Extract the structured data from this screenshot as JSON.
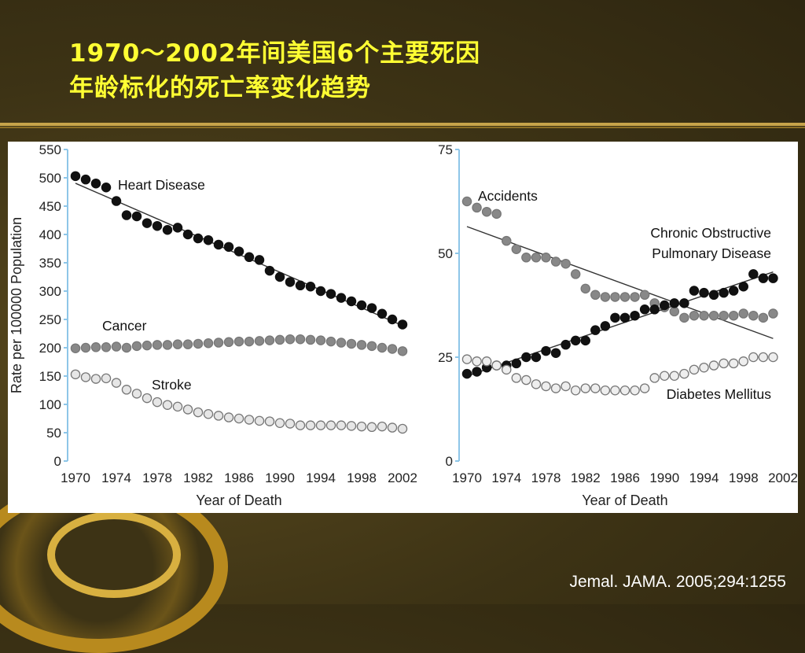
{
  "slide": {
    "title_line1": "1970～2002年间美国6个主要死因",
    "title_line2": "年龄标化的死亡率变化趋势",
    "citation": "Jemal. JAMA. 2005;294:1255"
  },
  "chart_data": [
    {
      "type": "scatter",
      "xlabel": "Year of Death",
      "ylabel": "Rate per 100000 Population",
      "xlim": [
        1970,
        2002
      ],
      "ylim": [
        0,
        550
      ],
      "x_ticks": [
        "1970",
        "1974",
        "1978",
        "1982",
        "1986",
        "1990",
        "1994",
        "1998",
        "2002"
      ],
      "y_ticks": [
        "0",
        "50",
        "100",
        "150",
        "200",
        "250",
        "300",
        "350",
        "400",
        "450",
        "500",
        "550"
      ],
      "trend_lines": true,
      "series": [
        {
          "name": "Heart Disease",
          "color": "#111111",
          "stroke": "#111111",
          "trend_line": true,
          "x": [
            1970,
            1971,
            1972,
            1973,
            1974,
            1975,
            1976,
            1977,
            1978,
            1979,
            1980,
            1981,
            1982,
            1983,
            1984,
            1985,
            1986,
            1987,
            1988,
            1989,
            1990,
            1991,
            1992,
            1993,
            1994,
            1995,
            1996,
            1997,
            1998,
            1999,
            2000,
            2001,
            2002
          ],
          "values": [
            503,
            497,
            490,
            483,
            459,
            434,
            432,
            420,
            415,
            408,
            412,
            400,
            393,
            390,
            382,
            378,
            370,
            360,
            355,
            336,
            325,
            316,
            310,
            308,
            300,
            295,
            288,
            282,
            275,
            270,
            260,
            250,
            241
          ]
        },
        {
          "name": "Cancer",
          "color": "#888888",
          "stroke": "#777777",
          "trend_line": false,
          "x": [
            1970,
            1971,
            1972,
            1973,
            1974,
            1975,
            1976,
            1977,
            1978,
            1979,
            1980,
            1981,
            1982,
            1983,
            1984,
            1985,
            1986,
            1987,
            1988,
            1989,
            1990,
            1991,
            1992,
            1993,
            1994,
            1995,
            1996,
            1997,
            1998,
            1999,
            2000,
            2001,
            2002
          ],
          "values": [
            199,
            200,
            201,
            201,
            202,
            200,
            203,
            204,
            205,
            205,
            206,
            206,
            207,
            208,
            209,
            210,
            211,
            211,
            212,
            213,
            214,
            215,
            215,
            214,
            213,
            211,
            209,
            207,
            205,
            203,
            200,
            198,
            194
          ]
        },
        {
          "name": "Stroke",
          "color": "#e6e6e6",
          "stroke": "#777777",
          "trend_line": false,
          "x": [
            1970,
            1971,
            1972,
            1973,
            1974,
            1975,
            1976,
            1977,
            1978,
            1979,
            1980,
            1981,
            1982,
            1983,
            1984,
            1985,
            1986,
            1987,
            1988,
            1989,
            1990,
            1991,
            1992,
            1993,
            1994,
            1995,
            1996,
            1997,
            1998,
            1999,
            2000,
            2001,
            2002
          ],
          "values": [
            153,
            148,
            145,
            146,
            138,
            126,
            119,
            111,
            104,
            99,
            96,
            91,
            86,
            83,
            80,
            77,
            75,
            73,
            71,
            70,
            67,
            66,
            63,
            63,
            63,
            63,
            63,
            62,
            61,
            60,
            61,
            59,
            57
          ]
        }
      ]
    },
    {
      "type": "scatter",
      "xlabel": "Year of Death",
      "ylabel": "",
      "xlim": [
        1970,
        2002
      ],
      "ylim": [
        0,
        75
      ],
      "x_ticks": [
        "1970",
        "1974",
        "1978",
        "1982",
        "1986",
        "1990",
        "1994",
        "1998",
        "2002"
      ],
      "y_ticks": [
        "0",
        "25",
        "50",
        "75"
      ],
      "trend_lines": true,
      "series": [
        {
          "name": "Accidents",
          "color": "#888888",
          "stroke": "#777777",
          "trend_line": true,
          "x": [
            1970,
            1971,
            1972,
            1973,
            1974,
            1975,
            1976,
            1977,
            1978,
            1979,
            1980,
            1981,
            1982,
            1983,
            1984,
            1985,
            1986,
            1987,
            1988,
            1989,
            1990,
            1991,
            1992,
            1993,
            1994,
            1995,
            1996,
            1997,
            1998,
            1999,
            2000,
            2001
          ],
          "values": [
            62.5,
            61,
            60,
            59.5,
            53,
            51,
            49,
            49,
            49,
            48,
            47.5,
            45,
            41.5,
            40,
            39.5,
            39.5,
            39.5,
            39.5,
            40,
            38,
            37,
            36,
            34.5,
            35,
            35,
            35,
            35,
            35,
            35.5,
            35,
            34.5,
            35.5
          ]
        },
        {
          "name": "Chronic Obstructive Pulmonary Disease",
          "color": "#111111",
          "stroke": "#111111",
          "trend_line": true,
          "x": [
            1970,
            1971,
            1972,
            1973,
            1974,
            1975,
            1976,
            1977,
            1978,
            1979,
            1980,
            1981,
            1982,
            1983,
            1984,
            1985,
            1986,
            1987,
            1988,
            1989,
            1990,
            1991,
            1992,
            1993,
            1994,
            1995,
            1996,
            1997,
            1998,
            1999,
            2000,
            2001
          ],
          "values": [
            21,
            21.5,
            22.5,
            23,
            23,
            23.5,
            25,
            25,
            26.5,
            26,
            28,
            29,
            29,
            31.5,
            32.5,
            34.5,
            34.5,
            35,
            36.5,
            36.5,
            37.5,
            38,
            38,
            41,
            40.5,
            40,
            40.5,
            41,
            42,
            45,
            44,
            44
          ]
        },
        {
          "name": "Diabetes Mellitus",
          "color": "#eeeeee",
          "stroke": "#777777",
          "trend_line": false,
          "x": [
            1970,
            1971,
            1972,
            1973,
            1974,
            1975,
            1976,
            1977,
            1978,
            1979,
            1980,
            1981,
            1982,
            1983,
            1984,
            1985,
            1986,
            1987,
            1988,
            1989,
            1990,
            1991,
            1992,
            1993,
            1994,
            1995,
            1996,
            1997,
            1998,
            1999,
            2000,
            2001
          ],
          "values": [
            24.5,
            24,
            24,
            23,
            22,
            20,
            19.5,
            18.5,
            18,
            17.5,
            18,
            17,
            17.5,
            17.5,
            17,
            17,
            17,
            17,
            17.5,
            20,
            20.5,
            20.5,
            21,
            22,
            22.5,
            23,
            23.5,
            23.5,
            24,
            25,
            25,
            25
          ]
        }
      ]
    }
  ]
}
